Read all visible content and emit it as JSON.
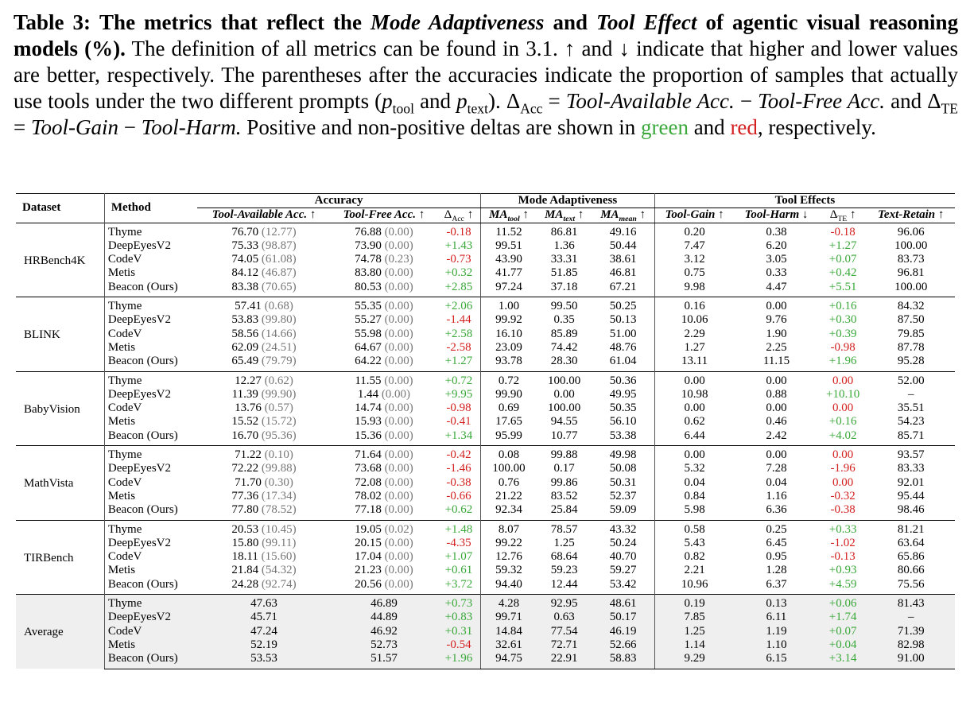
{
  "caption": {
    "label": "Table 3:",
    "bold_a": "The metrics that reflect the",
    "bold_i1": "Mode Adaptiveness",
    "bold_and": "and",
    "bold_i2": "Tool Effect",
    "bold_b": "of agentic visual reasoning models (%).",
    "text1": "The definition of all metrics can be found in 3.1. ↑ and ↓ indicate that higher and lower values are better, respectively. The parentheses after the accuracies indicate the proportion of samples that actually use tools under the two different prompts (",
    "p_tool_p": "p",
    "p_tool_sub": "tool",
    "and_word": "and",
    "p_text_p": "p",
    "p_text_sub": "text",
    "close": ").",
    "delta_acc_sym": "Δ",
    "delta_acc_sub": "Acc",
    "eq1": "=",
    "ta_acc": "Tool-Available Acc.",
    "minus1": "−",
    "tf_acc": "Tool-Free Acc.",
    "and2": "and",
    "delta_te_sym": "Δ",
    "delta_te_sub": "TE",
    "eq2": "=",
    "tool_gain": "Tool-Gain",
    "minus2": "−",
    "tool_harm": "Tool-Harm.",
    "text2": "Positive and non-positive deltas are shown in",
    "green_word": "green",
    "and3": "and",
    "red_word": "red",
    "text3": ", respectively."
  },
  "headers": {
    "dataset": "Dataset",
    "method": "Method",
    "accuracy": "Accuracy",
    "mode_adaptiveness": "Mode Adaptiveness",
    "tool_effects": "Tool Effects",
    "cols": {
      "ta_acc": "Tool-Available Acc. ↑",
      "tf_acc": "Tool-Free Acc. ↑",
      "d_acc": "Δ",
      "d_acc_sub": "Acc",
      "d_acc_arrow": "↑",
      "ma_tool": "MA",
      "ma_tool_sub": "tool",
      "ma_tool_arrow": "↑",
      "ma_text": "MA",
      "ma_text_sub": "text",
      "ma_text_arrow": "↑",
      "ma_mean": "MA",
      "ma_mean_sub": "mean",
      "ma_mean_arrow": "↑",
      "tool_gain": "Tool-Gain ↑",
      "tool_harm": "Tool-Harm ↓",
      "d_te": "Δ",
      "d_te_sub": "TE",
      "d_te_arrow": "↑",
      "text_retain": "Text-Retain ↑"
    }
  },
  "groups": [
    {
      "dataset": "HRBench4K",
      "rows": [
        {
          "method": "Thyme",
          "ta": "76.70",
          "ta_p": "(12.77)",
          "tf": "76.88",
          "tf_p": "(0.00)",
          "dacc": "-0.18",
          "dacc_c": "r",
          "ma_tool": "11.52",
          "ma_text": "86.81",
          "ma_mean": "49.16",
          "gain": "0.20",
          "harm": "0.38",
          "dte": "-0.18",
          "dte_c": "r",
          "retain": "96.06"
        },
        {
          "method": "DeepEyesV2",
          "ta": "75.33",
          "ta_p": "(98.87)",
          "tf": "73.90",
          "tf_p": "(0.00)",
          "dacc": "+1.43",
          "dacc_c": "g",
          "ma_tool": "99.51",
          "ma_text": "1.36",
          "ma_mean": "50.44",
          "gain": "7.47",
          "harm": "6.20",
          "dte": "+1.27",
          "dte_c": "g",
          "retain": "100.00"
        },
        {
          "method": "CodeV",
          "ta": "74.05",
          "ta_p": "(61.08)",
          "tf": "74.78",
          "tf_p": "(0.23)",
          "dacc": "-0.73",
          "dacc_c": "r",
          "ma_tool": "43.90",
          "ma_text": "33.31",
          "ma_mean": "38.61",
          "gain": "3.12",
          "harm": "3.05",
          "dte": "+0.07",
          "dte_c": "g",
          "retain": "83.73"
        },
        {
          "method": "Metis",
          "ta": "84.12",
          "ta_p": "(46.87)",
          "tf": "83.80",
          "tf_p": "(0.00)",
          "dacc": "+0.32",
          "dacc_c": "g",
          "ma_tool": "41.77",
          "ma_text": "51.85",
          "ma_mean": "46.81",
          "gain": "0.75",
          "harm": "0.33",
          "dte": "+0.42",
          "dte_c": "g",
          "retain": "96.81"
        },
        {
          "method": "Beacon (Ours)",
          "bold": true,
          "ta": "83.38",
          "ta_p": "(70.65)",
          "tf": "80.53",
          "tf_p": "(0.00)",
          "dacc": "+2.85",
          "dacc_c": "g",
          "ma_tool": "97.24",
          "ma_text": "37.18",
          "ma_mean": "67.21",
          "gain": "9.98",
          "harm": "4.47",
          "dte": "+5.51",
          "dte_c": "g",
          "retain": "100.00"
        }
      ]
    },
    {
      "dataset": "BLINK",
      "rows": [
        {
          "method": "Thyme",
          "ta": "57.41",
          "ta_p": "(0.68)",
          "tf": "55.35",
          "tf_p": "(0.00)",
          "dacc": "+2.06",
          "dacc_c": "g",
          "ma_tool": "1.00",
          "ma_text": "99.50",
          "ma_mean": "50.25",
          "gain": "0.16",
          "harm": "0.00",
          "dte": "+0.16",
          "dte_c": "g",
          "retain": "84.32"
        },
        {
          "method": "DeepEyesV2",
          "ta": "53.83",
          "ta_p": "(99.80)",
          "tf": "55.27",
          "tf_p": "(0.00)",
          "dacc": "-1.44",
          "dacc_c": "r",
          "ma_tool": "99.92",
          "ma_text": "0.35",
          "ma_mean": "50.13",
          "gain": "10.06",
          "harm": "9.76",
          "dte": "+0.30",
          "dte_c": "g",
          "retain": "87.50"
        },
        {
          "method": "CodeV",
          "ta": "58.56",
          "ta_p": "(14.66)",
          "tf": "55.98",
          "tf_p": "(0.00)",
          "dacc": "+2.58",
          "dacc_c": "g",
          "ma_tool": "16.10",
          "ma_text": "85.89",
          "ma_mean": "51.00",
          "gain": "2.29",
          "harm": "1.90",
          "dte": "+0.39",
          "dte_c": "g",
          "retain": "79.85"
        },
        {
          "method": "Metis",
          "ta": "62.09",
          "ta_p": "(24.51)",
          "tf": "64.67",
          "tf_p": "(0.00)",
          "dacc": "-2.58",
          "dacc_c": "r",
          "ma_tool": "23.09",
          "ma_text": "74.42",
          "ma_mean": "48.76",
          "gain": "1.27",
          "harm": "2.25",
          "dte": "-0.98",
          "dte_c": "r",
          "retain": "87.78"
        },
        {
          "method": "Beacon (Ours)",
          "bold": true,
          "ta": "65.49",
          "ta_p": "(79.79)",
          "tf": "64.22",
          "tf_p": "(0.00)",
          "dacc": "+1.27",
          "dacc_c": "g",
          "ma_tool": "93.78",
          "ma_text": "28.30",
          "ma_mean": "61.04",
          "gain": "13.11",
          "harm": "11.15",
          "dte": "+1.96",
          "dte_c": "g",
          "retain": "95.28"
        }
      ]
    },
    {
      "dataset": "BabyVision",
      "rows": [
        {
          "method": "Thyme",
          "ta": "12.27",
          "ta_p": "(0.62)",
          "tf": "11.55",
          "tf_p": "(0.00)",
          "dacc": "+0.72",
          "dacc_c": "g",
          "ma_tool": "0.72",
          "ma_text": "100.00",
          "ma_mean": "50.36",
          "gain": "0.00",
          "harm": "0.00",
          "dte": "0.00",
          "dte_c": "r",
          "retain": "52.00"
        },
        {
          "method": "DeepEyesV2",
          "ta": "11.39",
          "ta_p": "(99.90)",
          "tf": "1.44",
          "tf_p": "(0.00)",
          "dacc": "+9.95",
          "dacc_c": "g",
          "ma_tool": "99.90",
          "ma_text": "0.00",
          "ma_mean": "49.95",
          "gain": "10.98",
          "harm": "0.88",
          "dte": "+10.10",
          "dte_c": "g",
          "retain": "–"
        },
        {
          "method": "CodeV",
          "ta": "13.76",
          "ta_p": "(0.57)",
          "tf": "14.74",
          "tf_p": "(0.00)",
          "dacc": "-0.98",
          "dacc_c": "r",
          "ma_tool": "0.69",
          "ma_text": "100.00",
          "ma_mean": "50.35",
          "gain": "0.00",
          "harm": "0.00",
          "dte": "0.00",
          "dte_c": "r",
          "retain": "35.51"
        },
        {
          "method": "Metis",
          "ta": "15.52",
          "ta_p": "(15.72)",
          "tf": "15.93",
          "tf_p": "(0.00)",
          "dacc": "-0.41",
          "dacc_c": "r",
          "ma_tool": "17.65",
          "ma_text": "94.55",
          "ma_mean": "56.10",
          "gain": "0.62",
          "harm": "0.46",
          "dte": "+0.16",
          "dte_c": "g",
          "retain": "54.23"
        },
        {
          "method": "Beacon (Ours)",
          "bold": true,
          "ta": "16.70",
          "ta_p": "(95.36)",
          "tf": "15.36",
          "tf_p": "(0.00)",
          "dacc": "+1.34",
          "dacc_c": "g",
          "ma_tool": "95.99",
          "ma_text": "10.77",
          "ma_mean": "53.38",
          "gain": "6.44",
          "harm": "2.42",
          "dte": "+4.02",
          "dte_c": "g",
          "retain": "85.71"
        }
      ]
    },
    {
      "dataset": "MathVista",
      "rows": [
        {
          "method": "Thyme",
          "ta": "71.22",
          "ta_p": "(0.10)",
          "tf": "71.64",
          "tf_p": "(0.00)",
          "dacc": "-0.42",
          "dacc_c": "r",
          "ma_tool": "0.08",
          "ma_text": "99.88",
          "ma_mean": "49.98",
          "gain": "0.00",
          "harm": "0.00",
          "dte": "0.00",
          "dte_c": "r",
          "retain": "93.57"
        },
        {
          "method": "DeepEyesV2",
          "ta": "72.22",
          "ta_p": "(99.88)",
          "tf": "73.68",
          "tf_p": "(0.00)",
          "dacc": "-1.46",
          "dacc_c": "r",
          "ma_tool": "100.00",
          "ma_text": "0.17",
          "ma_mean": "50.08",
          "gain": "5.32",
          "harm": "7.28",
          "dte": "-1.96",
          "dte_c": "r",
          "retain": "83.33"
        },
        {
          "method": "CodeV",
          "ta": "71.70",
          "ta_p": "(0.30)",
          "tf": "72.08",
          "tf_p": "(0.00)",
          "dacc": "-0.38",
          "dacc_c": "r",
          "ma_tool": "0.76",
          "ma_text": "99.86",
          "ma_mean": "50.31",
          "gain": "0.04",
          "harm": "0.04",
          "dte": "0.00",
          "dte_c": "r",
          "retain": "92.01"
        },
        {
          "method": "Metis",
          "ta": "77.36",
          "ta_p": "(17.34)",
          "tf": "78.02",
          "tf_p": "(0.00)",
          "dacc": "-0.66",
          "dacc_c": "r",
          "ma_tool": "21.22",
          "ma_text": "83.52",
          "ma_mean": "52.37",
          "gain": "0.84",
          "harm": "1.16",
          "dte": "-0.32",
          "dte_c": "r",
          "retain": "95.44"
        },
        {
          "method": "Beacon (Ours)",
          "bold": true,
          "ta": "77.80",
          "ta_p": "(78.52)",
          "tf": "77.18",
          "tf_p": "(0.00)",
          "dacc": "+0.62",
          "dacc_c": "g",
          "ma_tool": "92.34",
          "ma_text": "25.84",
          "ma_mean": "59.09",
          "gain": "5.98",
          "harm": "6.36",
          "dte": "-0.38",
          "dte_c": "r",
          "retain": "98.46"
        }
      ]
    },
    {
      "dataset": "TIRBench",
      "rows": [
        {
          "method": "Thyme",
          "ta": "20.53",
          "ta_p": "(10.45)",
          "tf": "19.05",
          "tf_p": "(0.02)",
          "dacc": "+1.48",
          "dacc_c": "g",
          "ma_tool": "8.07",
          "ma_text": "78.57",
          "ma_mean": "43.32",
          "gain": "0.58",
          "harm": "0.25",
          "dte": "+0.33",
          "dte_c": "g",
          "retain": "81.21"
        },
        {
          "method": "DeepEyesV2",
          "ta": "15.80",
          "ta_p": "(99.11)",
          "tf": "20.15",
          "tf_p": "(0.00)",
          "dacc": "-4.35",
          "dacc_c": "r",
          "ma_tool": "99.22",
          "ma_text": "1.25",
          "ma_mean": "50.24",
          "gain": "5.43",
          "harm": "6.45",
          "dte": "-1.02",
          "dte_c": "r",
          "retain": "63.64"
        },
        {
          "method": "CodeV",
          "ta": "18.11",
          "ta_p": "(15.60)",
          "tf": "17.04",
          "tf_p": "(0.00)",
          "dacc": "+1.07",
          "dacc_c": "g",
          "ma_tool": "12.76",
          "ma_text": "68.64",
          "ma_mean": "40.70",
          "gain": "0.82",
          "harm": "0.95",
          "dte": "-0.13",
          "dte_c": "r",
          "retain": "65.86"
        },
        {
          "method": "Metis",
          "ta": "21.84",
          "ta_p": "(54.32)",
          "tf": "21.23",
          "tf_p": "(0.00)",
          "dacc": "+0.61",
          "dacc_c": "g",
          "ma_tool": "59.32",
          "ma_text": "59.23",
          "ma_mean": "59.27",
          "gain": "2.21",
          "harm": "1.28",
          "dte": "+0.93",
          "dte_c": "g",
          "retain": "80.66"
        },
        {
          "method": "Beacon (Ours)",
          "bold": true,
          "ta": "24.28",
          "ta_p": "(92.74)",
          "tf": "20.56",
          "tf_p": "(0.00)",
          "dacc": "+3.72",
          "dacc_c": "g",
          "ma_tool": "94.40",
          "ma_text": "12.44",
          "ma_mean": "53.42",
          "gain": "10.96",
          "harm": "6.37",
          "dte": "+4.59",
          "dte_c": "g",
          "retain": "75.56"
        }
      ]
    },
    {
      "dataset": "Average",
      "average": true,
      "rows": [
        {
          "method": "Thyme",
          "ta": "47.63",
          "ta_p": "",
          "tf": "46.89",
          "tf_p": "",
          "dacc": "+0.73",
          "dacc_c": "g",
          "ma_tool": "4.28",
          "ma_text": "92.95",
          "ma_mean": "48.61",
          "gain": "0.19",
          "harm": "0.13",
          "dte": "+0.06",
          "dte_c": "g",
          "retain": "81.43"
        },
        {
          "method": "DeepEyesV2",
          "ta": "45.71",
          "ta_p": "",
          "tf": "44.89",
          "tf_p": "",
          "dacc": "+0.83",
          "dacc_c": "g",
          "ma_tool": "99.71",
          "ma_text": "0.63",
          "ma_mean": "50.17",
          "gain": "7.85",
          "harm": "6.11",
          "dte": "+1.74",
          "dte_c": "g",
          "retain": "–"
        },
        {
          "method": "CodeV",
          "ta": "47.24",
          "ta_p": "",
          "tf": "46.92",
          "tf_p": "",
          "dacc": "+0.31",
          "dacc_c": "g",
          "ma_tool": "14.84",
          "ma_text": "77.54",
          "ma_mean": "46.19",
          "gain": "1.25",
          "harm": "1.19",
          "dte": "+0.07",
          "dte_c": "g",
          "retain": "71.39"
        },
        {
          "method": "Metis",
          "ta": "52.19",
          "ta_p": "",
          "tf": "52.73",
          "tf_p": "",
          "dacc": "-0.54",
          "dacc_c": "r",
          "ma_tool": "32.61",
          "ma_text": "72.71",
          "ma_mean": "52.66",
          "gain": "1.14",
          "harm": "1.10",
          "dte": "+0.04",
          "dte_c": "g",
          "retain": "82.98"
        },
        {
          "method": "Beacon (Ours)",
          "bold": true,
          "ta": "53.53",
          "ta_p": "",
          "tf": "51.57",
          "tf_p": "",
          "dacc": "+1.96",
          "dacc_c": "g",
          "dacc_bold": true,
          "ma_tool": "94.75",
          "ma_text": "22.91",
          "ma_mean": "58.83",
          "ma_mean_bold": true,
          "gain": "9.29",
          "harm": "6.15",
          "dte": "+3.14",
          "dte_c": "g",
          "dte_bold": true,
          "retain": "91.00",
          "retain_bold": true
        }
      ]
    }
  ]
}
